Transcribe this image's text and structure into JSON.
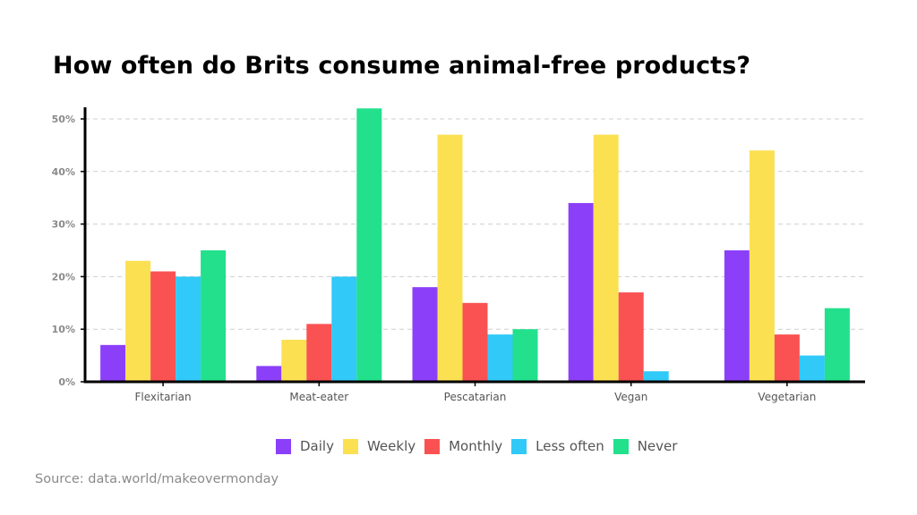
{
  "page": {
    "title": "How often do Brits consume animal-free products?",
    "source": "Source: data.world/makeovermonday"
  },
  "chart_data": {
    "type": "bar",
    "title": "How often do Brits consume animal-free products?",
    "xlabel": "",
    "ylabel": "",
    "ylim": [
      0,
      50
    ],
    "yticks": [
      0,
      10,
      20,
      30,
      40,
      50
    ],
    "ytick_labels": [
      "0%",
      "10%",
      "20%",
      "30%",
      "40%",
      "50%"
    ],
    "grid": true,
    "legend_position": "bottom",
    "categories": [
      "Flexitarian",
      "Meat-eater",
      "Pescatarian",
      "Vegan",
      "Vegetarian"
    ],
    "series": [
      {
        "name": "Daily",
        "color": "#8c3ff9",
        "values": [
          7,
          3,
          18,
          34,
          25
        ]
      },
      {
        "name": "Weekly",
        "color": "#fbe052",
        "values": [
          23,
          8,
          47,
          47,
          44
        ]
      },
      {
        "name": "Monthly",
        "color": "#fa5253",
        "values": [
          21,
          11,
          15,
          17,
          9
        ]
      },
      {
        "name": "Less often",
        "color": "#31c9f8",
        "values": [
          20,
          20,
          9,
          2,
          5
        ]
      },
      {
        "name": "Never",
        "color": "#22e08c",
        "values": [
          25,
          52,
          10,
          0,
          14
        ]
      }
    ]
  }
}
